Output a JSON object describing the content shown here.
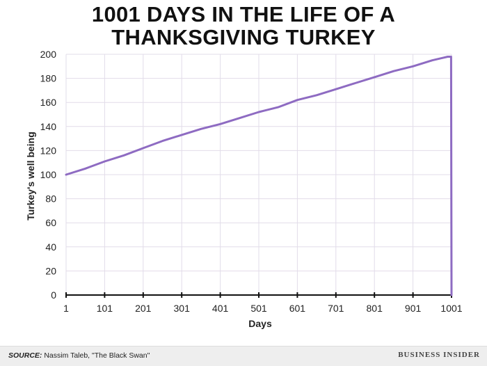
{
  "chart_data": {
    "type": "line",
    "title_lines": [
      "1001 DAYS IN THE LIFE OF A",
      "THANKSGIVING TURKEY"
    ],
    "xlabel": "Days",
    "ylabel": "Turkey's well being",
    "xlim": [
      1,
      1001
    ],
    "ylim": [
      0,
      200
    ],
    "x_ticks": [
      1,
      101,
      201,
      301,
      401,
      501,
      601,
      701,
      801,
      901,
      1001
    ],
    "y_ticks": [
      0,
      20,
      40,
      60,
      80,
      100,
      120,
      140,
      160,
      180,
      200
    ],
    "grid": true,
    "line_color": "#8e6bc2",
    "series": [
      {
        "x": [
          1,
          51,
          101,
          151,
          201,
          251,
          301,
          351,
          401,
          451,
          501,
          551,
          601,
          651,
          701,
          751,
          801,
          851,
          901,
          951,
          991,
          1000,
          1001
        ],
        "y": [
          100,
          105,
          111,
          116,
          122,
          128,
          133,
          138,
          142,
          147,
          152,
          156,
          162,
          166,
          171,
          176,
          181,
          186,
          190,
          195,
          198,
          198,
          0
        ]
      }
    ]
  },
  "footer": {
    "source_label": "SOURCE:",
    "source_text": "Nassim Taleb, \"The Black Swan\"",
    "brand": "BUSINESS INSIDER"
  }
}
